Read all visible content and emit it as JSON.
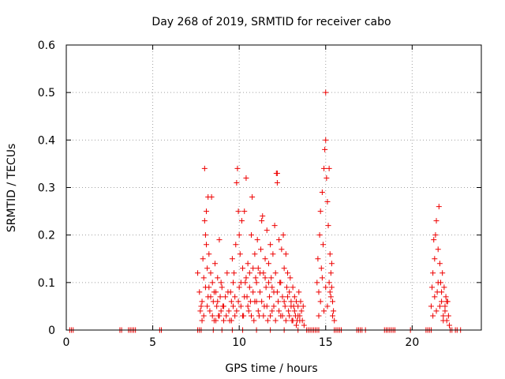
{
  "chart_data": {
    "type": "scatter",
    "title": "Day 268 of 2019, SRMTID for receiver cabo",
    "xlabel": "GPS time / hours",
    "ylabel": "SRMTID / TECUs",
    "xlim": [
      0,
      24
    ],
    "ylim": [
      0,
      0.6
    ],
    "xticks": [
      0,
      5,
      10,
      15,
      20
    ],
    "xtick_labels": [
      "0",
      "5",
      "10",
      "15",
      "20"
    ],
    "yticks": [
      0,
      0.1,
      0.2,
      0.3,
      0.4,
      0.5,
      0.6
    ],
    "ytick_labels": [
      "0",
      "0.1",
      "0.2",
      "0.3",
      "0.4",
      "0.5",
      "0.6"
    ],
    "grid": true,
    "marker": "+",
    "color": "#ee0000",
    "series": [
      {
        "name": "SRMTID",
        "points": [
          [
            0.2,
            0
          ],
          [
            0.3,
            0
          ],
          [
            0.4,
            0
          ],
          [
            3.1,
            0
          ],
          [
            3.2,
            0
          ],
          [
            3.6,
            0
          ],
          [
            3.7,
            0
          ],
          [
            3.8,
            0
          ],
          [
            3.9,
            0
          ],
          [
            4.0,
            0
          ],
          [
            5.4,
            0
          ],
          [
            5.5,
            0
          ],
          [
            7.6,
            0
          ],
          [
            7.7,
            0
          ],
          [
            7.8,
            0
          ],
          [
            8.5,
            0
          ],
          [
            9.0,
            0
          ],
          [
            9.6,
            0
          ],
          [
            10.2,
            0
          ],
          [
            11.0,
            0
          ],
          [
            11.8,
            0
          ],
          [
            12.6,
            0
          ],
          [
            13.4,
            0
          ],
          [
            13.9,
            0
          ],
          [
            14.0,
            0
          ],
          [
            14.1,
            0
          ],
          [
            14.2,
            0
          ],
          [
            14.3,
            0
          ],
          [
            14.4,
            0
          ],
          [
            14.5,
            0
          ],
          [
            14.6,
            0
          ],
          [
            15.5,
            0
          ],
          [
            15.6,
            0
          ],
          [
            15.7,
            0
          ],
          [
            15.8,
            0
          ],
          [
            15.9,
            0
          ],
          [
            16.8,
            0
          ],
          [
            16.9,
            0
          ],
          [
            17.0,
            0
          ],
          [
            17.1,
            0
          ],
          [
            17.3,
            0
          ],
          [
            18.4,
            0
          ],
          [
            18.5,
            0
          ],
          [
            18.6,
            0
          ],
          [
            18.7,
            0
          ],
          [
            18.8,
            0
          ],
          [
            18.9,
            0
          ],
          [
            19.0,
            0
          ],
          [
            19.9,
            0
          ],
          [
            20.8,
            0
          ],
          [
            20.9,
            0
          ],
          [
            21.0,
            0
          ],
          [
            21.1,
            0
          ],
          [
            22.2,
            0
          ],
          [
            22.3,
            0
          ],
          [
            22.5,
            0
          ],
          [
            22.6,
            0
          ],
          [
            22.8,
            0
          ],
          [
            7.6,
            0.12
          ],
          [
            7.7,
            0.08
          ],
          [
            7.8,
            0.05
          ],
          [
            7.85,
            0.02
          ],
          [
            7.9,
            0.15
          ],
          [
            7.95,
            0.11
          ],
          [
            8.0,
            0.34
          ],
          [
            8.0,
            0.23
          ],
          [
            8.05,
            0.2
          ],
          [
            8.1,
            0.25
          ],
          [
            8.1,
            0.18
          ],
          [
            8.15,
            0.13
          ],
          [
            8.2,
            0.07
          ],
          [
            8.2,
            0.28
          ],
          [
            8.25,
            0.09
          ],
          [
            8.3,
            0.04
          ],
          [
            8.35,
            0.12
          ],
          [
            8.4,
            0.28
          ],
          [
            8.45,
            0.1
          ],
          [
            8.5,
            0.06
          ],
          [
            8.55,
            0.02
          ],
          [
            8.6,
            0.14
          ],
          [
            8.65,
            0.08
          ],
          [
            8.7,
            0.05
          ],
          [
            8.75,
            0.11
          ],
          [
            8.8,
            0.03
          ],
          [
            8.85,
            0.19
          ],
          [
            8.9,
            0.07
          ],
          [
            8.95,
            0.04
          ],
          [
            9.0,
            0.09
          ],
          [
            7.75,
            0.04
          ],
          [
            7.85,
            0.06
          ],
          [
            7.95,
            0.03
          ],
          [
            8.05,
            0.09
          ],
          [
            8.15,
            0.05
          ],
          [
            8.25,
            0.16
          ],
          [
            8.35,
            0.07
          ],
          [
            8.45,
            0.03
          ],
          [
            8.55,
            0.08
          ],
          [
            8.65,
            0.02
          ],
          [
            8.75,
            0.06
          ],
          [
            8.85,
            0.03
          ],
          [
            8.95,
            0.1
          ],
          [
            9.05,
            0.05
          ],
          [
            9.1,
            0.02
          ],
          [
            9.2,
            0.07
          ],
          [
            9.3,
            0.12
          ],
          [
            9.4,
            0.04
          ],
          [
            9.5,
            0.08
          ],
          [
            9.55,
            0.02
          ],
          [
            9.6,
            0.15
          ],
          [
            9.65,
            0.05
          ],
          [
            9.7,
            0.12
          ],
          [
            9.75,
            0.03
          ],
          [
            9.8,
            0.18
          ],
          [
            9.85,
            0.31
          ],
          [
            9.9,
            0.34
          ],
          [
            9.95,
            0.25
          ],
          [
            10.0,
            0.2
          ],
          [
            10.0,
            0.09
          ],
          [
            10.05,
            0.16
          ],
          [
            10.1,
            0.05
          ],
          [
            10.15,
            0.23
          ],
          [
            10.2,
            0.13
          ],
          [
            10.25,
            0.03
          ],
          [
            10.3,
            0.25
          ],
          [
            10.35,
            0.1
          ],
          [
            10.4,
            0.32
          ],
          [
            10.45,
            0.07
          ],
          [
            10.5,
            0.14
          ],
          [
            10.55,
            0.04
          ],
          [
            10.6,
            0.12
          ],
          [
            10.65,
            0.06
          ],
          [
            10.7,
            0.2
          ],
          [
            10.75,
            0.28
          ],
          [
            10.8,
            0.08
          ],
          [
            10.85,
            0.02
          ],
          [
            10.9,
            0.16
          ],
          [
            10.95,
            0.11
          ],
          [
            11.0,
            0.06
          ],
          [
            11.05,
            0.19
          ],
          [
            11.1,
            0.13
          ],
          [
            11.15,
            0.03
          ],
          [
            11.2,
            0.08
          ],
          [
            11.25,
            0.17
          ],
          [
            11.3,
            0.23
          ],
          [
            11.35,
            0.24
          ],
          [
            11.4,
            0.12
          ],
          [
            11.45,
            0.05
          ],
          [
            11.5,
            0.15
          ],
          [
            11.55,
            0.09
          ],
          [
            11.6,
            0.21
          ],
          [
            11.65,
            0.02
          ],
          [
            11.7,
            0.14
          ],
          [
            11.75,
            0.07
          ],
          [
            11.8,
            0.18
          ],
          [
            11.85,
            0.11
          ],
          [
            11.9,
            0.04
          ],
          [
            11.95,
            0.16
          ],
          [
            12.0,
            0.08
          ],
          [
            12.05,
            0.22
          ],
          [
            12.1,
            0.12
          ],
          [
            12.15,
            0.33
          ],
          [
            12.2,
            0.33
          ],
          [
            12.2,
            0.31
          ],
          [
            12.25,
            0.06
          ],
          [
            12.3,
            0.19
          ],
          [
            12.35,
            0.1
          ],
          [
            12.4,
            0.03
          ],
          [
            12.45,
            0.17
          ],
          [
            12.5,
            0.07
          ],
          [
            12.55,
            0.2
          ],
          [
            12.6,
            0.13
          ],
          [
            12.65,
            0.05
          ],
          [
            12.7,
            0.16
          ],
          [
            12.75,
            0.09
          ],
          [
            12.8,
            0.12
          ],
          [
            12.85,
            0.04
          ],
          [
            12.9,
            0.08
          ],
          [
            12.95,
            0.11
          ],
          [
            13.0,
            0.06
          ],
          [
            13.05,
            0.02
          ],
          [
            13.1,
            0.09
          ],
          [
            13.15,
            0.05
          ],
          [
            13.2,
            0.07
          ],
          [
            13.25,
            0.03
          ],
          [
            13.3,
            0.06
          ],
          [
            13.35,
            0.02
          ],
          [
            13.4,
            0.05
          ],
          [
            13.45,
            0.08
          ],
          [
            13.5,
            0.03
          ],
          [
            13.55,
            0.06
          ],
          [
            13.6,
            0.04
          ],
          [
            13.65,
            0.02
          ],
          [
            13.7,
            0.05
          ],
          [
            13.75,
            0.01
          ],
          [
            9.1,
            0.05
          ],
          [
            9.25,
            0.03
          ],
          [
            9.35,
            0.08
          ],
          [
            9.45,
            0.02
          ],
          [
            9.55,
            0.06
          ],
          [
            9.65,
            0.1
          ],
          [
            9.75,
            0.07
          ],
          [
            9.85,
            0.04
          ],
          [
            9.95,
            0.06
          ],
          [
            10.1,
            0.1
          ],
          [
            10.2,
            0.03
          ],
          [
            10.3,
            0.07
          ],
          [
            10.4,
            0.11
          ],
          [
            10.5,
            0.05
          ],
          [
            10.6,
            0.09
          ],
          [
            10.7,
            0.03
          ],
          [
            10.8,
            0.13
          ],
          [
            10.9,
            0.06
          ],
          [
            11.0,
            0.1
          ],
          [
            11.1,
            0.04
          ],
          [
            11.2,
            0.12
          ],
          [
            11.3,
            0.06
          ],
          [
            11.4,
            0.03
          ],
          [
            11.5,
            0.11
          ],
          [
            11.6,
            0.05
          ],
          [
            11.7,
            0.1
          ],
          [
            11.8,
            0.03
          ],
          [
            11.9,
            0.09
          ],
          [
            12.0,
            0.05
          ],
          [
            12.1,
            0.02
          ],
          [
            12.2,
            0.08
          ],
          [
            12.3,
            0.04
          ],
          [
            12.4,
            0.1
          ],
          [
            12.5,
            0.03
          ],
          [
            12.6,
            0.06
          ],
          [
            12.7,
            0.02
          ],
          [
            12.8,
            0.07
          ],
          [
            12.9,
            0.03
          ],
          [
            13.0,
            0.05
          ],
          [
            13.1,
            0.02
          ],
          [
            13.2,
            0.04
          ],
          [
            13.3,
            0.01
          ],
          [
            13.4,
            0.03
          ],
          [
            13.5,
            0.02
          ],
          [
            14.5,
            0.1
          ],
          [
            14.55,
            0.15
          ],
          [
            14.6,
            0.08
          ],
          [
            14.65,
            0.2
          ],
          [
            14.7,
            0.25
          ],
          [
            14.75,
            0.13
          ],
          [
            14.8,
            0.29
          ],
          [
            14.85,
            0.18
          ],
          [
            14.9,
            0.34
          ],
          [
            14.95,
            0.38
          ],
          [
            15.0,
            0.5
          ],
          [
            15.0,
            0.4
          ],
          [
            15.05,
            0.32
          ],
          [
            15.1,
            0.27
          ],
          [
            15.15,
            0.22
          ],
          [
            15.2,
            0.34
          ],
          [
            15.25,
            0.16
          ],
          [
            15.3,
            0.12
          ],
          [
            15.35,
            0.09
          ],
          [
            15.4,
            0.06
          ],
          [
            15.45,
            0.04
          ],
          [
            15.5,
            0.02
          ],
          [
            14.6,
            0.03
          ],
          [
            14.7,
            0.06
          ],
          [
            14.8,
            0.11
          ],
          [
            14.9,
            0.04
          ],
          [
            15.0,
            0.09
          ],
          [
            15.1,
            0.05
          ],
          [
            15.2,
            0.1
          ],
          [
            15.3,
            0.07
          ],
          [
            15.4,
            0.03
          ],
          [
            15.35,
            0.14
          ],
          [
            15.25,
            0.08
          ],
          [
            21.1,
            0.05
          ],
          [
            21.15,
            0.09
          ],
          [
            21.2,
            0.12
          ],
          [
            21.25,
            0.19
          ],
          [
            21.3,
            0.15
          ],
          [
            21.35,
            0.2
          ],
          [
            21.4,
            0.23
          ],
          [
            21.45,
            0.08
          ],
          [
            21.5,
            0.17
          ],
          [
            21.55,
            0.26
          ],
          [
            21.6,
            0.14
          ],
          [
            21.65,
            0.1
          ],
          [
            21.7,
            0.06
          ],
          [
            21.75,
            0.12
          ],
          [
            21.8,
            0.03
          ],
          [
            21.85,
            0.09
          ],
          [
            21.9,
            0.05
          ],
          [
            21.95,
            0.07
          ],
          [
            22.0,
            0.02
          ],
          [
            22.05,
            0.06
          ],
          [
            22.1,
            0.03
          ],
          [
            22.15,
            0.01
          ],
          [
            21.2,
            0.03
          ],
          [
            21.3,
            0.07
          ],
          [
            21.4,
            0.04
          ],
          [
            21.5,
            0.1
          ],
          [
            21.6,
            0.05
          ],
          [
            21.7,
            0.08
          ],
          [
            21.8,
            0.02
          ],
          [
            21.9,
            0.04
          ],
          [
            22.0,
            0.06
          ]
        ]
      }
    ]
  }
}
